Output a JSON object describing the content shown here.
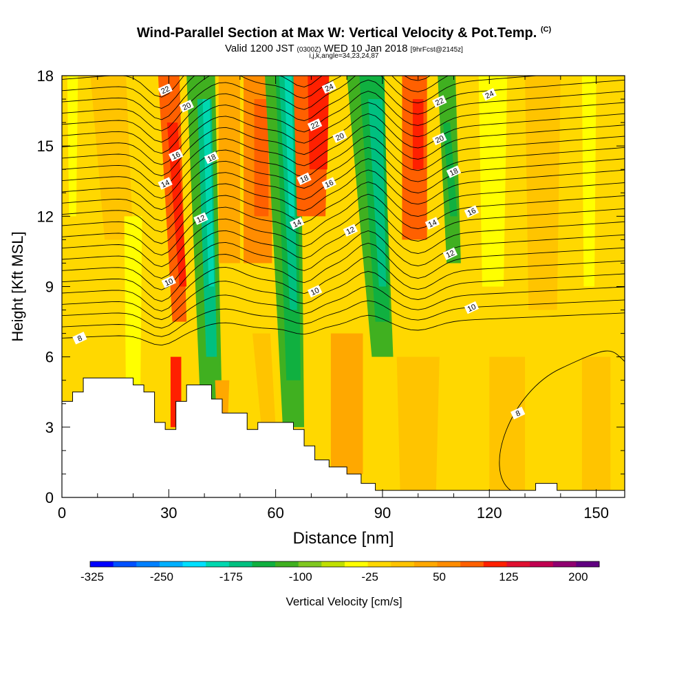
{
  "header": {
    "title_main": "Wind-Parallel Section at Max W: Vertical Velocity & Pot.Temp.",
    "title_mark": "(C)",
    "valid_prefix": "Valid 1200 JST",
    "valid_utc": "(0300Z)",
    "valid_date": "WED 10 Jan 2018",
    "valid_fcst": "[9hrFcst@2145z]",
    "indices": "i,j,k,angle=34,23,24,87"
  },
  "chart_data": {
    "type": "heatmap",
    "xlabel": "Distance [nm]",
    "ylabel": "Height [Kft MSL]",
    "xlim": [
      0,
      158
    ],
    "ylim": [
      0,
      18
    ],
    "x_ticks": [
      "0",
      "30",
      "60",
      "90",
      "120",
      "150"
    ],
    "y_ticks": [
      "0",
      "3",
      "6",
      "9",
      "12",
      "15",
      "18"
    ],
    "colorbar": {
      "label": "Vertical Velocity [cm/s]",
      "tick_labels": [
        "-325",
        "-250",
        "-175",
        "-100",
        "-25",
        "50",
        "125",
        "200"
      ],
      "colors": [
        "#0000ff",
        "#0050ff",
        "#0080ff",
        "#00b0ff",
        "#00e0ff",
        "#00d8b0",
        "#00c080",
        "#10b040",
        "#40b020",
        "#80c820",
        "#c0e000",
        "#ffff00",
        "#ffd800",
        "#ffc400",
        "#ffa800",
        "#ff8c00",
        "#ff6000",
        "#ff2000",
        "#e01030",
        "#c00050",
        "#900070",
        "#600080"
      ]
    },
    "theta_contour_labels": [
      {
        "text": "8",
        "x": 5,
        "y": 6.8
      },
      {
        "text": "8",
        "x": 128,
        "y": 3.6
      },
      {
        "text": "10",
        "x": 30,
        "y": 9.2
      },
      {
        "text": "10",
        "x": 71,
        "y": 8.8
      },
      {
        "text": "10",
        "x": 115,
        "y": 8.1
      },
      {
        "text": "12",
        "x": 39,
        "y": 11.9
      },
      {
        "text": "12",
        "x": 81,
        "y": 11.4
      },
      {
        "text": "12",
        "x": 109,
        "y": 10.4
      },
      {
        "text": "14",
        "x": 29,
        "y": 13.4
      },
      {
        "text": "14",
        "x": 66,
        "y": 11.7
      },
      {
        "text": "14",
        "x": 104,
        "y": 11.7
      },
      {
        "text": "16",
        "x": 32,
        "y": 14.6
      },
      {
        "text": "16",
        "x": 75,
        "y": 13.4
      },
      {
        "text": "16",
        "x": 115,
        "y": 12.2
      },
      {
        "text": "18",
        "x": 42,
        "y": 14.5
      },
      {
        "text": "18",
        "x": 68,
        "y": 13.6
      },
      {
        "text": "18",
        "x": 110,
        "y": 13.9
      },
      {
        "text": "20",
        "x": 35,
        "y": 16.7
      },
      {
        "text": "20",
        "x": 78,
        "y": 15.4
      },
      {
        "text": "20",
        "x": 106,
        "y": 15.3
      },
      {
        "text": "22",
        "x": 29,
        "y": 17.4
      },
      {
        "text": "22",
        "x": 71,
        "y": 15.9
      },
      {
        "text": "22",
        "x": 106,
        "y": 16.9
      },
      {
        "text": "24",
        "x": 75,
        "y": 17.5
      },
      {
        "text": "24",
        "x": 120,
        "y": 17.2
      }
    ],
    "terrain_profile": [
      {
        "x": 0,
        "y": 4.1
      },
      {
        "x": 3,
        "y": 4.5
      },
      {
        "x": 6,
        "y": 5.1
      },
      {
        "x": 20,
        "y": 4.8
      },
      {
        "x": 23,
        "y": 4.5
      },
      {
        "x": 26,
        "y": 3.2
      },
      {
        "x": 29,
        "y": 2.9
      },
      {
        "x": 32,
        "y": 4.1
      },
      {
        "x": 35,
        "y": 4.8
      },
      {
        "x": 42,
        "y": 4.2
      },
      {
        "x": 45,
        "y": 3.6
      },
      {
        "x": 52,
        "y": 2.9
      },
      {
        "x": 55,
        "y": 3.2
      },
      {
        "x": 65,
        "y": 2.9
      },
      {
        "x": 68,
        "y": 2.2
      },
      {
        "x": 71,
        "y": 1.6
      },
      {
        "x": 75,
        "y": 1.3
      },
      {
        "x": 80,
        "y": 1.0
      },
      {
        "x": 84,
        "y": 0.6
      },
      {
        "x": 88,
        "y": 0.3
      },
      {
        "x": 133,
        "y": 0.3
      },
      {
        "x": 133,
        "y": 0.6
      },
      {
        "x": 139,
        "y": 0.6
      },
      {
        "x": 139,
        "y": 0.3
      },
      {
        "x": 158,
        "y": 0.3
      }
    ]
  }
}
